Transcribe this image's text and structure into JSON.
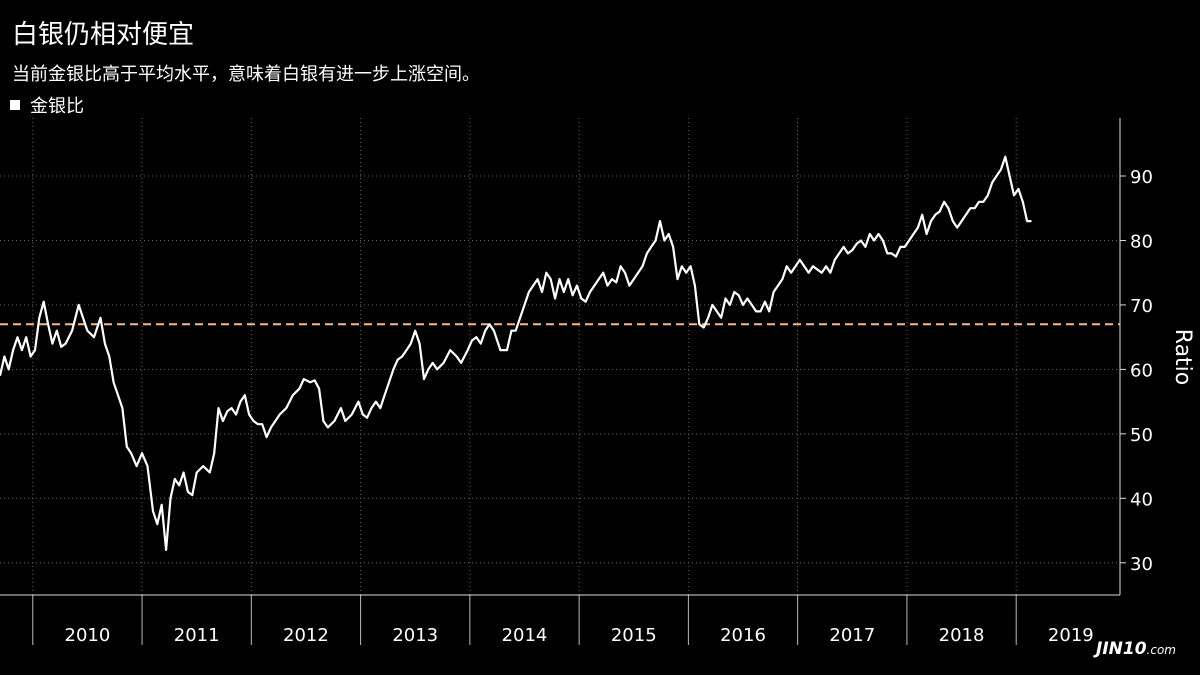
{
  "header": {
    "title": "白银仍相对便宜",
    "subtitle": "当前金银比高于平均水平，意味着白银有进一步上涨空间。"
  },
  "legend": {
    "label": "金银比"
  },
  "watermark": {
    "main": "JIN10",
    "suffix": ".com"
  },
  "colors": {
    "background": "#000000",
    "series": "#ffffff",
    "average": "#f5b98c",
    "grid": "#666666"
  },
  "chart_data": {
    "type": "line",
    "ylabel": "Ratio",
    "ylim": [
      25,
      99
    ],
    "yticks": [
      30,
      40,
      50,
      60,
      70,
      80,
      90
    ],
    "xlim": [
      2009.7,
      2019.95
    ],
    "x_tick_labels": [
      "2010",
      "2011",
      "2012",
      "2013",
      "2014",
      "2015",
      "2016",
      "2017",
      "2018",
      "2019"
    ],
    "grid": true,
    "reference_line": {
      "value": 67,
      "style": "dashed"
    },
    "series": [
      {
        "name": "金银比",
        "points": [
          [
            2009.7,
            59
          ],
          [
            2009.74,
            62
          ],
          [
            2009.78,
            60
          ],
          [
            2009.82,
            63
          ],
          [
            2009.86,
            65
          ],
          [
            2009.9,
            63
          ],
          [
            2009.94,
            65
          ],
          [
            2009.98,
            62
          ],
          [
            2010.02,
            63
          ],
          [
            2010.06,
            68
          ],
          [
            2010.1,
            70.5
          ],
          [
            2010.14,
            67
          ],
          [
            2010.18,
            64
          ],
          [
            2010.22,
            66
          ],
          [
            2010.26,
            63.5
          ],
          [
            2010.3,
            64
          ],
          [
            2010.36,
            66
          ],
          [
            2010.42,
            70
          ],
          [
            2010.46,
            68
          ],
          [
            2010.5,
            66
          ],
          [
            2010.56,
            65
          ],
          [
            2010.62,
            68
          ],
          [
            2010.66,
            64
          ],
          [
            2010.7,
            62
          ],
          [
            2010.74,
            58
          ],
          [
            2010.78,
            56
          ],
          [
            2010.82,
            54
          ],
          [
            2010.86,
            48
          ],
          [
            2010.9,
            47
          ],
          [
            2010.95,
            45
          ],
          [
            2011.0,
            47
          ],
          [
            2011.05,
            45
          ],
          [
            2011.1,
            38
          ],
          [
            2011.14,
            36
          ],
          [
            2011.18,
            39
          ],
          [
            2011.22,
            32
          ],
          [
            2011.26,
            40
          ],
          [
            2011.3,
            43
          ],
          [
            2011.34,
            42
          ],
          [
            2011.38,
            44
          ],
          [
            2011.42,
            41
          ],
          [
            2011.46,
            40.5
          ],
          [
            2011.5,
            44
          ],
          [
            2011.56,
            45
          ],
          [
            2011.62,
            44
          ],
          [
            2011.66,
            47
          ],
          [
            2011.7,
            54
          ],
          [
            2011.74,
            52
          ],
          [
            2011.78,
            53.5
          ],
          [
            2011.82,
            54
          ],
          [
            2011.86,
            53
          ],
          [
            2011.9,
            55
          ],
          [
            2011.94,
            56
          ],
          [
            2011.98,
            53
          ],
          [
            2012.02,
            52
          ],
          [
            2012.06,
            51.5
          ],
          [
            2012.1,
            51.5
          ],
          [
            2012.14,
            49.5
          ],
          [
            2012.18,
            51
          ],
          [
            2012.22,
            52
          ],
          [
            2012.26,
            53
          ],
          [
            2012.32,
            54
          ],
          [
            2012.38,
            56
          ],
          [
            2012.44,
            57
          ],
          [
            2012.48,
            58.5
          ],
          [
            2012.54,
            58
          ],
          [
            2012.58,
            58.3
          ],
          [
            2012.62,
            57
          ],
          [
            2012.66,
            52
          ],
          [
            2012.7,
            51
          ],
          [
            2012.76,
            52
          ],
          [
            2012.82,
            54
          ],
          [
            2012.86,
            52
          ],
          [
            2012.92,
            53
          ],
          [
            2012.98,
            55
          ],
          [
            2013.02,
            53
          ],
          [
            2013.06,
            52.5
          ],
          [
            2013.1,
            54
          ],
          [
            2013.14,
            55
          ],
          [
            2013.18,
            54
          ],
          [
            2013.22,
            56
          ],
          [
            2013.26,
            58
          ],
          [
            2013.3,
            60
          ],
          [
            2013.34,
            61.5
          ],
          [
            2013.38,
            62
          ],
          [
            2013.42,
            63
          ],
          [
            2013.46,
            64
          ],
          [
            2013.5,
            66
          ],
          [
            2013.54,
            64
          ],
          [
            2013.58,
            58.5
          ],
          [
            2013.62,
            60
          ],
          [
            2013.66,
            61
          ],
          [
            2013.7,
            60
          ],
          [
            2013.76,
            61
          ],
          [
            2013.82,
            63
          ],
          [
            2013.88,
            62
          ],
          [
            2013.92,
            61
          ],
          [
            2013.98,
            63
          ],
          [
            2014.02,
            64.5
          ],
          [
            2014.06,
            65
          ],
          [
            2014.1,
            64
          ],
          [
            2014.14,
            66
          ],
          [
            2014.18,
            67
          ],
          [
            2014.22,
            66
          ],
          [
            2014.28,
            63
          ],
          [
            2014.34,
            63
          ],
          [
            2014.38,
            66
          ],
          [
            2014.42,
            66
          ],
          [
            2014.46,
            68
          ],
          [
            2014.5,
            70
          ],
          [
            2014.54,
            72
          ],
          [
            2014.58,
            73
          ],
          [
            2014.62,
            74
          ],
          [
            2014.66,
            72
          ],
          [
            2014.7,
            75
          ],
          [
            2014.74,
            74
          ],
          [
            2014.78,
            71
          ],
          [
            2014.82,
            74
          ],
          [
            2014.86,
            72
          ],
          [
            2014.9,
            74
          ],
          [
            2014.94,
            71.5
          ],
          [
            2014.98,
            73
          ],
          [
            2015.02,
            71
          ],
          [
            2015.06,
            70.5
          ],
          [
            2015.1,
            72
          ],
          [
            2015.14,
            73
          ],
          [
            2015.18,
            74
          ],
          [
            2015.22,
            75
          ],
          [
            2015.26,
            73
          ],
          [
            2015.3,
            74
          ],
          [
            2015.34,
            73.5
          ],
          [
            2015.38,
            76
          ],
          [
            2015.42,
            75
          ],
          [
            2015.46,
            73
          ],
          [
            2015.5,
            74
          ],
          [
            2015.54,
            75
          ],
          [
            2015.58,
            76
          ],
          [
            2015.62,
            78
          ],
          [
            2015.66,
            79
          ],
          [
            2015.7,
            80
          ],
          [
            2015.74,
            83
          ],
          [
            2015.78,
            80
          ],
          [
            2015.82,
            81
          ],
          [
            2015.86,
            79
          ],
          [
            2015.9,
            74
          ],
          [
            2015.94,
            76
          ],
          [
            2015.98,
            75
          ],
          [
            2016.02,
            76
          ],
          [
            2016.06,
            73
          ],
          [
            2016.1,
            67
          ],
          [
            2016.14,
            66.5
          ],
          [
            2016.18,
            68
          ],
          [
            2016.22,
            70
          ],
          [
            2016.26,
            69
          ],
          [
            2016.3,
            68
          ],
          [
            2016.34,
            71
          ],
          [
            2016.38,
            70
          ],
          [
            2016.42,
            72
          ],
          [
            2016.46,
            71.5
          ],
          [
            2016.5,
            70
          ],
          [
            2016.54,
            71
          ],
          [
            2016.58,
            70
          ],
          [
            2016.62,
            69
          ],
          [
            2016.66,
            69
          ],
          [
            2016.7,
            70.5
          ],
          [
            2016.74,
            69
          ],
          [
            2016.78,
            72
          ],
          [
            2016.82,
            73
          ],
          [
            2016.86,
            74
          ],
          [
            2016.9,
            76
          ],
          [
            2016.94,
            75
          ],
          [
            2016.98,
            76
          ],
          [
            2017.02,
            77
          ],
          [
            2017.06,
            76
          ],
          [
            2017.1,
            75
          ],
          [
            2017.14,
            76
          ],
          [
            2017.18,
            75.5
          ],
          [
            2017.22,
            75
          ],
          [
            2017.26,
            76
          ],
          [
            2017.3,
            75
          ],
          [
            2017.34,
            77
          ],
          [
            2017.38,
            78
          ],
          [
            2017.42,
            79
          ],
          [
            2017.46,
            78
          ],
          [
            2017.5,
            78.5
          ],
          [
            2017.54,
            79.5
          ],
          [
            2017.58,
            80
          ],
          [
            2017.62,
            79
          ],
          [
            2017.66,
            81
          ],
          [
            2017.7,
            80
          ],
          [
            2017.74,
            81
          ],
          [
            2017.78,
            80
          ],
          [
            2017.82,
            78
          ],
          [
            2017.86,
            78
          ],
          [
            2017.9,
            77.5
          ],
          [
            2017.94,
            79
          ],
          [
            2017.98,
            79
          ],
          [
            2018.02,
            80
          ],
          [
            2018.06,
            81
          ],
          [
            2018.1,
            82
          ],
          [
            2018.14,
            84
          ],
          [
            2018.18,
            81
          ],
          [
            2018.22,
            83
          ],
          [
            2018.26,
            84
          ],
          [
            2018.3,
            84.5
          ],
          [
            2018.34,
            86
          ],
          [
            2018.38,
            85
          ],
          [
            2018.42,
            83
          ],
          [
            2018.46,
            82
          ],
          [
            2018.5,
            83
          ],
          [
            2018.54,
            84
          ],
          [
            2018.58,
            85
          ],
          [
            2018.62,
            85
          ],
          [
            2018.66,
            86
          ],
          [
            2018.7,
            86
          ],
          [
            2018.74,
            87
          ],
          [
            2018.78,
            89
          ],
          [
            2018.82,
            90
          ],
          [
            2018.86,
            91
          ],
          [
            2018.9,
            93
          ],
          [
            2018.94,
            90
          ],
          [
            2018.98,
            87
          ],
          [
            2019.02,
            88
          ],
          [
            2019.06,
            86
          ],
          [
            2019.1,
            83
          ],
          [
            2019.14,
            83
          ]
        ]
      }
    ]
  }
}
